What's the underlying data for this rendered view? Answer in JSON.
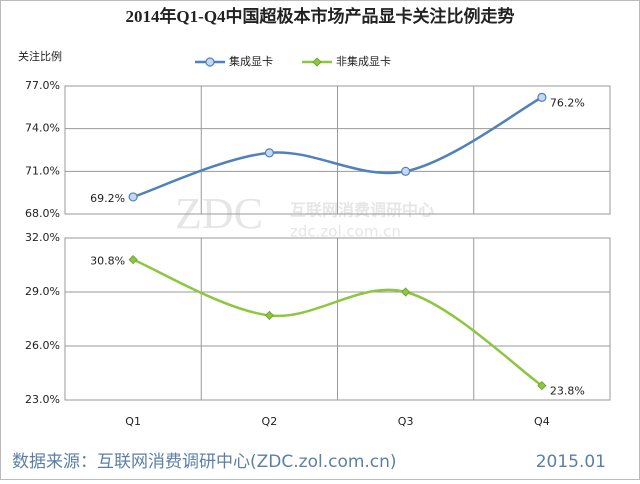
{
  "chart_data": {
    "type": "line",
    "title": "2014年Q1-Q4中国超极本市场产品显卡关注比例走势",
    "y_label": "关注比例",
    "categories": [
      "Q1",
      "Q2",
      "Q3",
      "Q4"
    ],
    "grid": true,
    "series": [
      {
        "name": "集成显卡",
        "color": "#4f81bd",
        "values": [
          69.2,
          72.3,
          71.0,
          76.2
        ],
        "value_labels": [
          "69.2%",
          null,
          null,
          "76.2%"
        ],
        "ylim": [
          68,
          77
        ],
        "yticks": [
          {
            "value": 68,
            "label": "68.0%"
          },
          {
            "value": 71,
            "label": "71.0%"
          },
          {
            "value": 74,
            "label": "74.0%"
          },
          {
            "value": 77,
            "label": "77.0%"
          }
        ]
      },
      {
        "name": "非集成显卡",
        "color": "#8dc63f",
        "values": [
          30.8,
          27.7,
          29.0,
          23.8
        ],
        "value_labels": [
          "30.8%",
          null,
          null,
          "23.8%"
        ],
        "ylim": [
          23,
          32
        ],
        "yticks": [
          {
            "value": 23,
            "label": "23.0%"
          },
          {
            "value": 26,
            "label": "26.0%"
          },
          {
            "value": 29,
            "label": "29.0%"
          },
          {
            "value": 32,
            "label": "32.0%"
          }
        ]
      }
    ],
    "watermark": [
      "ZDC",
      "互联网消费调研中心",
      "zdc.zol.com.cn"
    ],
    "source": "数据来源：互联网消费调研中心(ZDC.zol.com.cn)",
    "date": "2015.01"
  }
}
